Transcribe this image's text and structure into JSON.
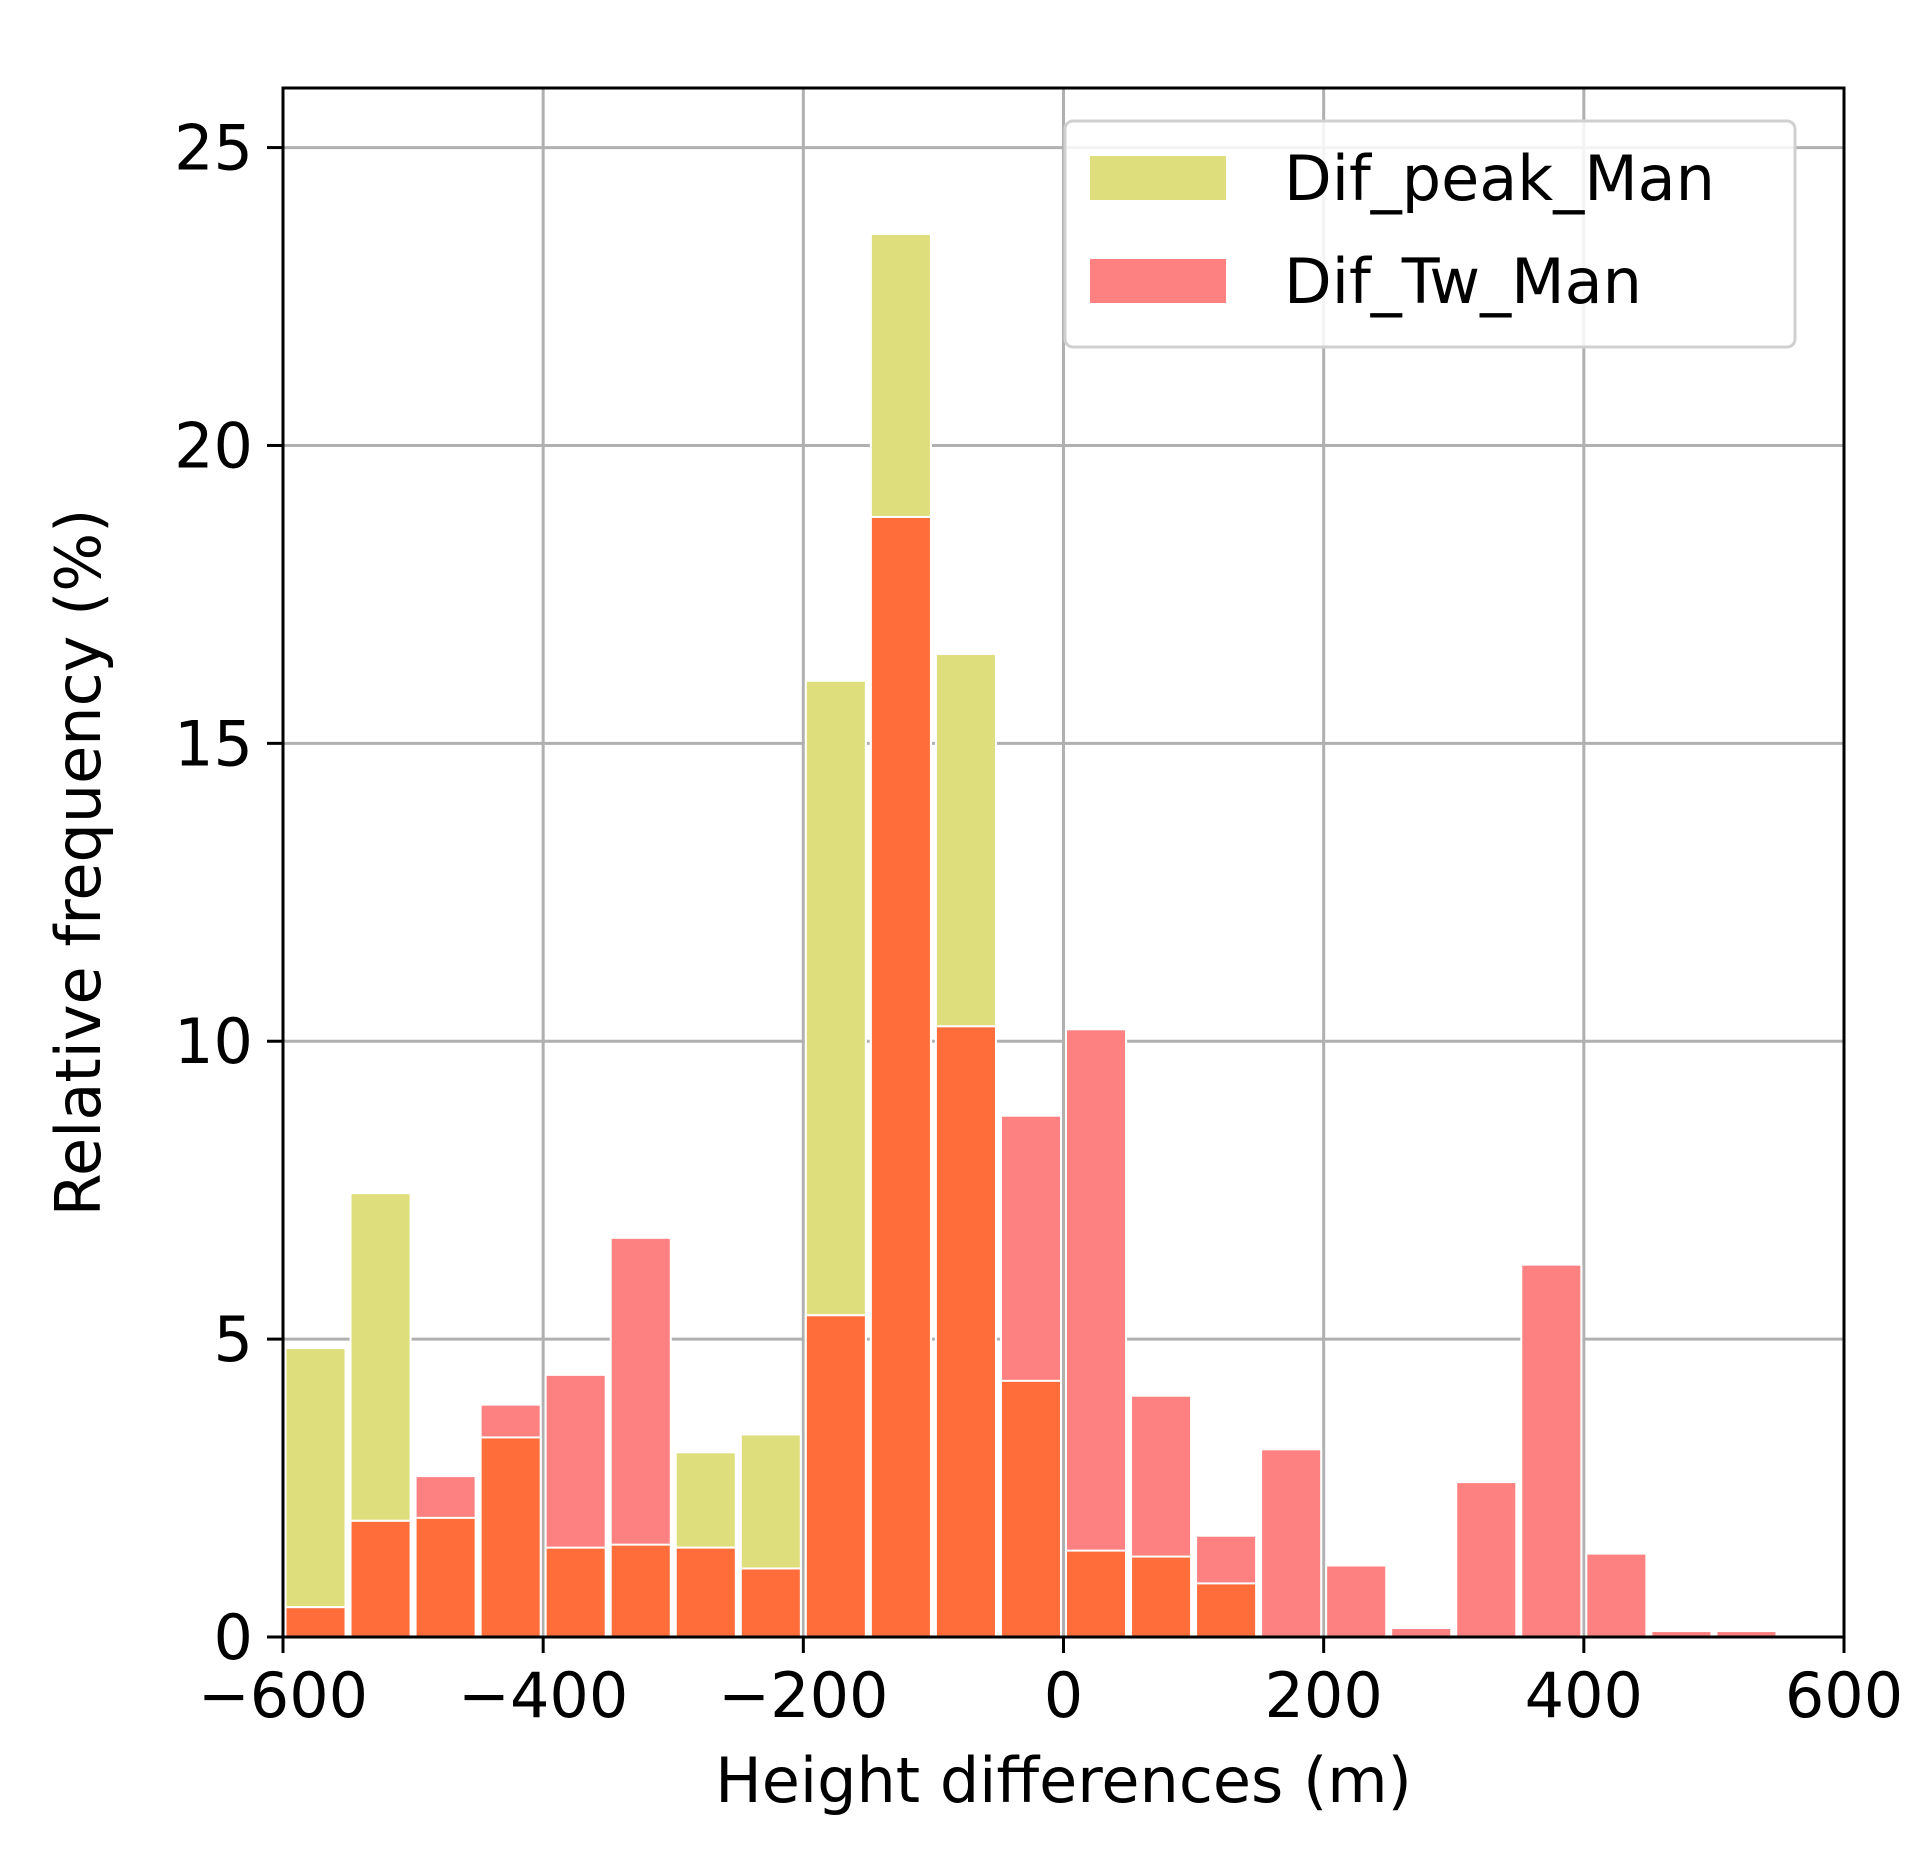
{
  "chart_data": {
    "type": "histogram",
    "xlabel": "Height differences (m)",
    "ylabel": "Relative frequency (%)",
    "xlim": [
      -600,
      600
    ],
    "ylim": [
      0,
      26
    ],
    "xticks": [
      -600,
      -400,
      -200,
      0,
      200,
      400,
      600
    ],
    "xtick_labels": [
      "−600",
      "−400",
      "−200",
      "0",
      "200",
      "400",
      "600"
    ],
    "yticks": [
      0,
      5,
      10,
      15,
      20,
      25
    ],
    "ytick_labels": [
      "0",
      "5",
      "10",
      "15",
      "20",
      "25"
    ],
    "grid": true,
    "legend_position": "top-right",
    "bin_edges": [
      -600,
      -550,
      -500,
      -450,
      -400,
      -350,
      -300,
      -250,
      -200,
      -150,
      -100,
      -50,
      0,
      50,
      100,
      150,
      200,
      250,
      300,
      350,
      400,
      450,
      500,
      550
    ],
    "series": [
      {
        "name": "Dif_peak_Man",
        "color": "#dede7c",
        "values": [
          4.85,
          7.45,
          2.0,
          3.35,
          1.5,
          1.55,
          3.1,
          3.4,
          16.05,
          23.55,
          16.5,
          4.3,
          1.45,
          1.35,
          0.9,
          0,
          0,
          0,
          0,
          0,
          0,
          0,
          0
        ]
      },
      {
        "name": "Dif_Tw_Man",
        "color": "#fe8181",
        "values": [
          0.5,
          1.95,
          2.7,
          3.9,
          4.4,
          6.7,
          1.5,
          1.15,
          5.4,
          18.8,
          10.25,
          8.75,
          10.2,
          4.05,
          1.7,
          3.15,
          1.2,
          0.15,
          2.6,
          6.25,
          1.4,
          0.1,
          0.1
        ]
      }
    ],
    "overlap_color": "#fe6d3a"
  }
}
